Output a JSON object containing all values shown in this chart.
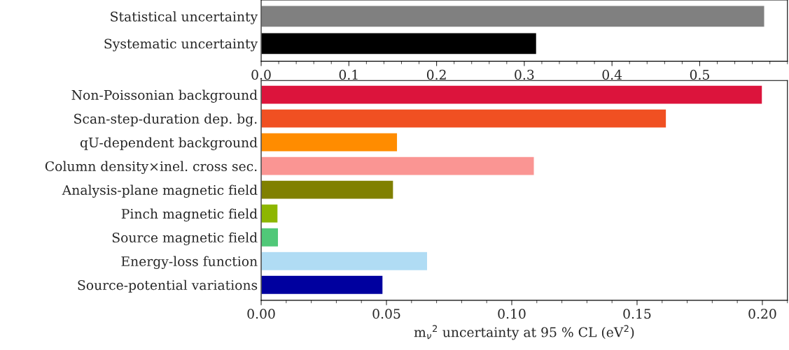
{
  "chart_data": [
    {
      "type": "bar",
      "orientation": "horizontal",
      "categories": [
        "Statistical uncertainty",
        "Systematic uncertainty"
      ],
      "values": [
        0.574,
        0.314
      ],
      "colors": [
        "#808080",
        "#000000"
      ],
      "xlim": [
        0,
        0.6
      ],
      "xticks": [
        {
          "value": 0,
          "label": "0.0"
        },
        {
          "value": 0.1,
          "label": "0.1"
        },
        {
          "value": 0.2,
          "label": "0.2"
        },
        {
          "value": 0.3,
          "label": "0.3"
        },
        {
          "value": 0.4,
          "label": "0.4"
        },
        {
          "value": 0.5,
          "label": "0.5"
        }
      ],
      "grid": false,
      "legend": false
    },
    {
      "type": "bar",
      "orientation": "horizontal",
      "categories": [
        "Non-Poissonian background",
        "Scan-step-duration dep. bg.",
        "qU-dependent background",
        "Column density×inel. cross sec.",
        "Analysis-plane magnetic field",
        "Pinch magnetic field",
        "Source magnetic field",
        "Energy-loss function",
        "Source-potential variations"
      ],
      "values": [
        0.2,
        0.1617,
        0.0544,
        0.109,
        0.0528,
        0.0067,
        0.0069,
        0.0664,
        0.0486
      ],
      "colors": [
        "#dc143c",
        "#f05022",
        "#ff8c00",
        "#fa9593",
        "#808000",
        "#8db600",
        "#50c878",
        "#b0dcf4",
        "#00009f"
      ],
      "xlim": [
        0,
        0.21
      ],
      "xticks": [
        {
          "value": 0,
          "label": "0.00"
        },
        {
          "value": 0.05,
          "label": "0.05"
        },
        {
          "value": 0.1,
          "label": "0.10"
        },
        {
          "value": 0.15,
          "label": "0.15"
        },
        {
          "value": 0.2,
          "label": "0.20"
        }
      ],
      "xlabel": "m$_{ν}$$^{2}$ uncertainty at 95 % CL (eV$^{2}$)",
      "grid": false,
      "legend": false
    }
  ]
}
